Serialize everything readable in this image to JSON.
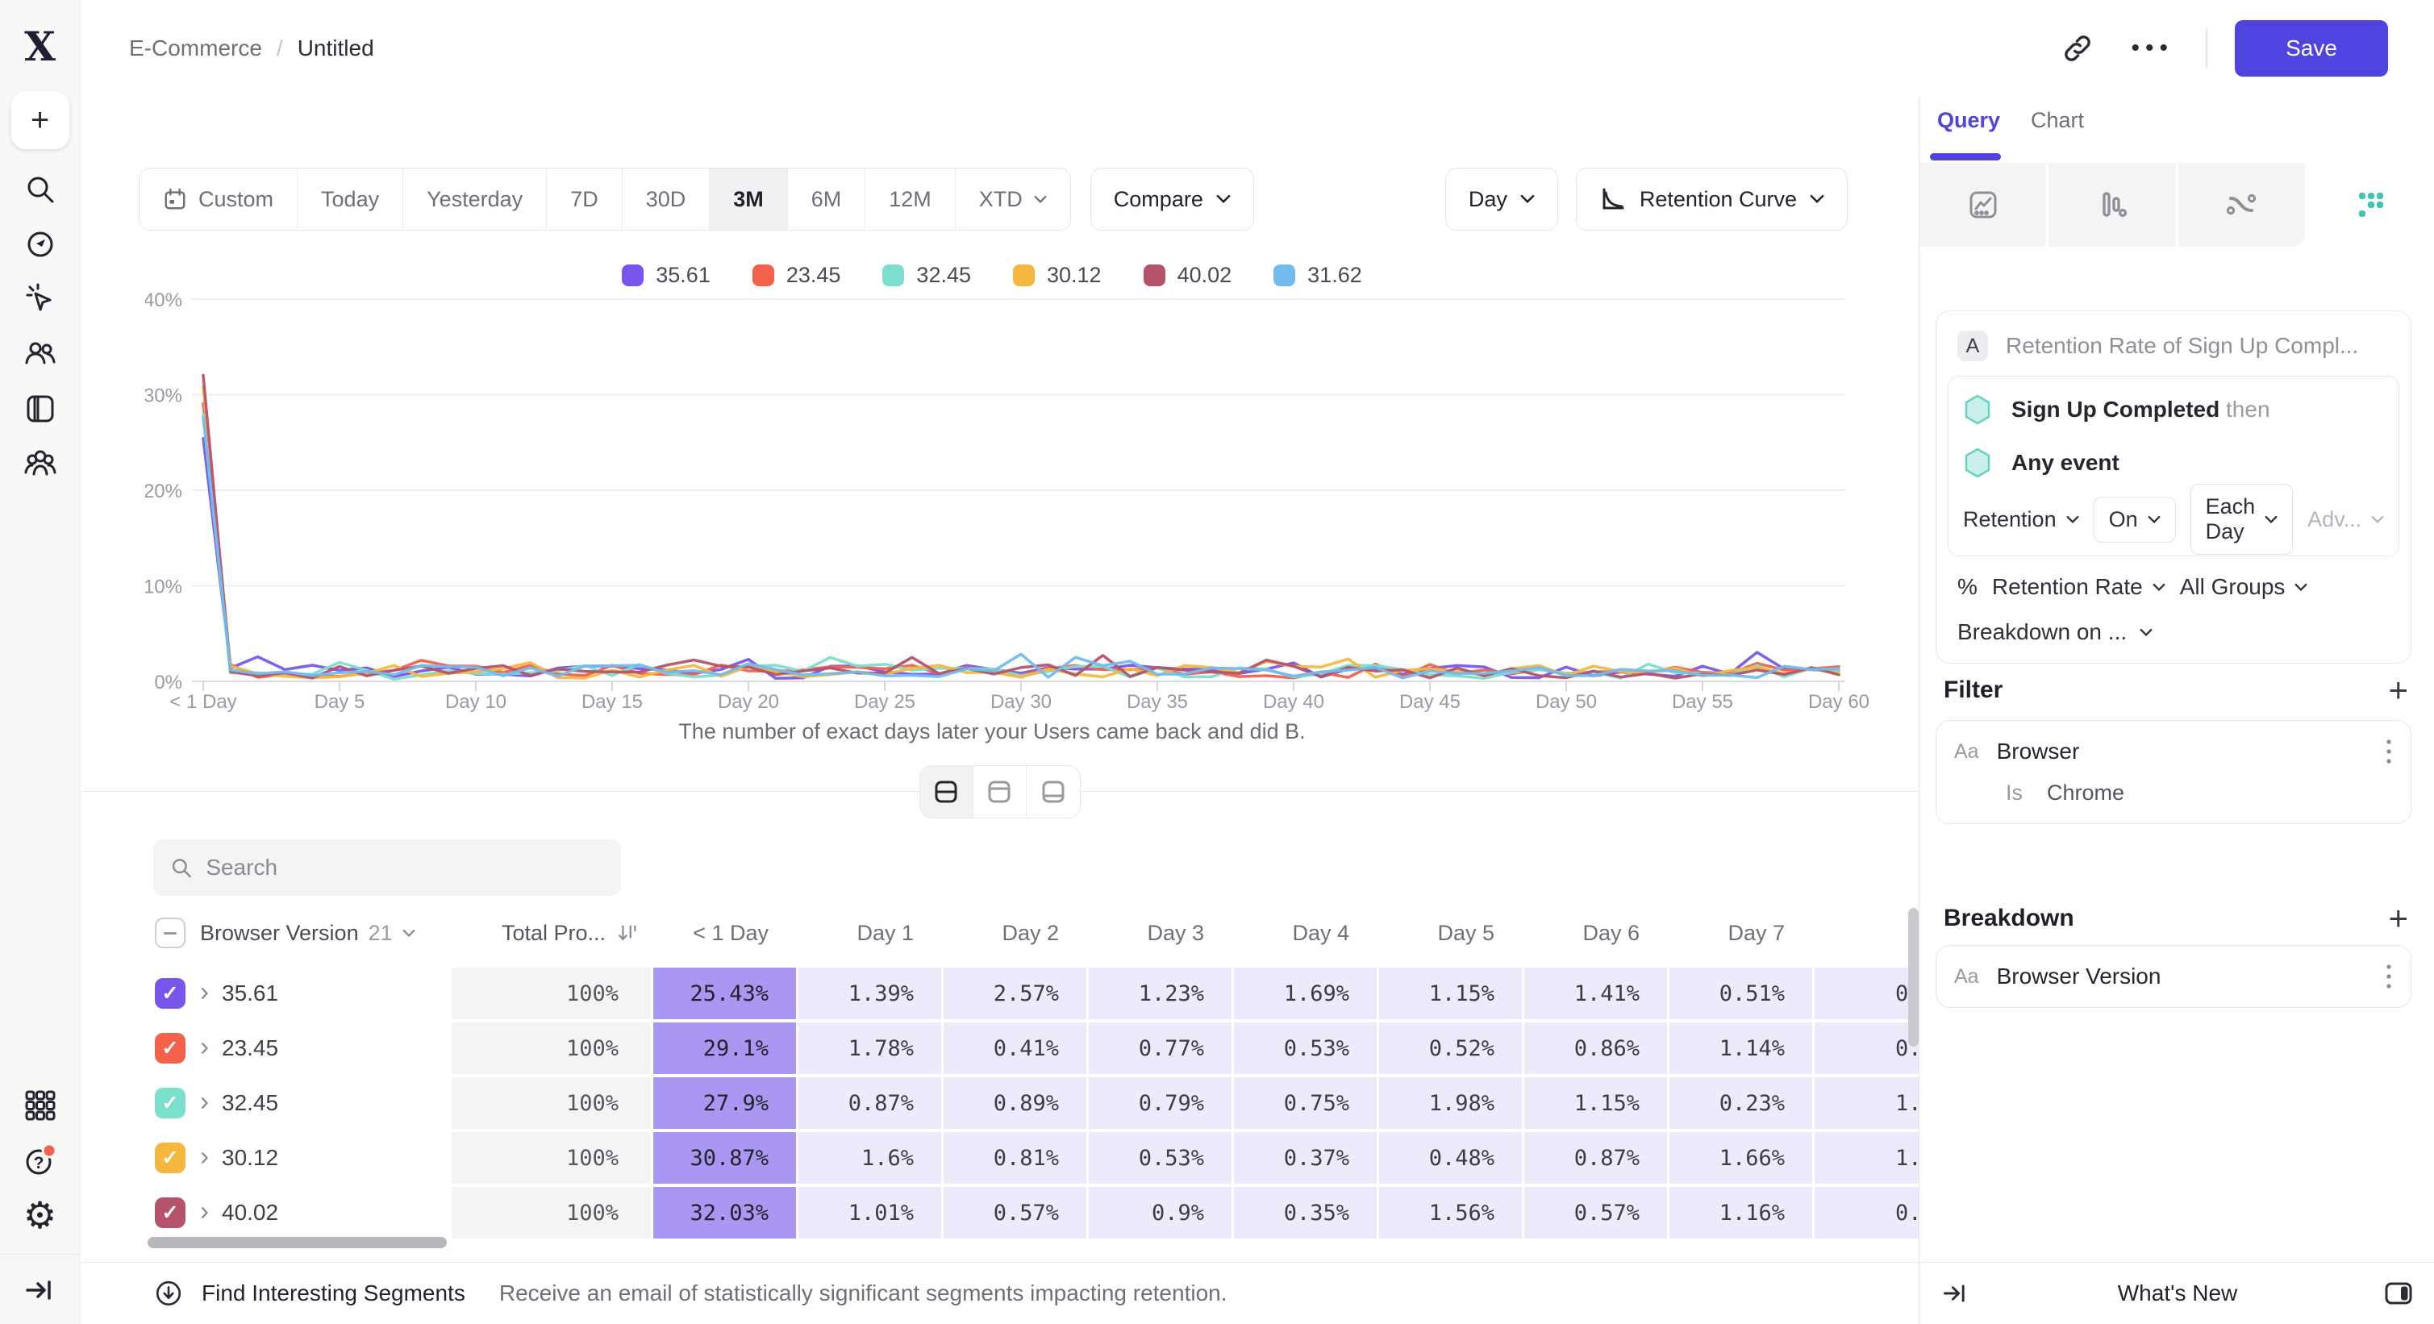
{
  "topbar": {
    "breadcrumb": {
      "parent": "E-Commerce",
      "separator": "/",
      "current": "Untitled"
    },
    "save_label": "Save"
  },
  "sidebar": {
    "top_icons": [
      "mixpanel-logo",
      "create-plus",
      "search",
      "discover-compass",
      "events-cursor",
      "users",
      "boards",
      "cohorts"
    ],
    "bottom_icons": [
      "apps-grid",
      "help",
      "settings-gear",
      "expand-sidebar"
    ],
    "help_has_notification": true,
    "logo_letter": "X"
  },
  "toolbar": {
    "ranges": [
      {
        "label": "Custom",
        "icon": "calendar"
      },
      {
        "label": "Today"
      },
      {
        "label": "Yesterday"
      },
      {
        "label": "7D"
      },
      {
        "label": "30D"
      },
      {
        "label": "3M",
        "active": true
      },
      {
        "label": "6M"
      },
      {
        "label": "12M"
      },
      {
        "label": "XTD",
        "chevron": true
      }
    ],
    "compare_label": "Compare",
    "day_label": "Day",
    "chart_type_label": "Retention Curve"
  },
  "chart_data": {
    "type": "line",
    "caption": "The number of exact days later your Users came back and did B.",
    "x_tick_labels": [
      "< 1 Day",
      "Day 5",
      "Day 10",
      "Day 15",
      "Day 20",
      "Day 25",
      "Day 30",
      "Day 35",
      "Day 40",
      "Day 45",
      "Day 50",
      "Day 55",
      "Day 60"
    ],
    "y_tick_labels": [
      "40%",
      "30%",
      "20%",
      "10%",
      "0%"
    ],
    "y_tick_values": [
      40,
      30,
      20,
      10,
      0
    ],
    "ylim": [
      0,
      40
    ],
    "x_days": [
      0,
      60
    ],
    "grid": "horizontal",
    "legend_position": "top-center",
    "series": [
      {
        "name": "35.61",
        "color": "#7856EB",
        "days_0_to_7": [
          25.43,
          1.39,
          2.57,
          1.23,
          1.69,
          1.15,
          1.41,
          0.51
        ],
        "tail": "fluctuates ~0.2-2.5% through Day 60"
      },
      {
        "name": "23.45",
        "color": "#F4614B",
        "days_0_to_7": [
          29.1,
          1.78,
          0.41,
          0.77,
          0.53,
          0.52,
          0.86,
          1.14
        ],
        "tail": "fluctuates ~0.2-2.5% through Day 60"
      },
      {
        "name": "32.45",
        "color": "#7CDECC",
        "days_0_to_7": [
          27.9,
          0.87,
          0.89,
          0.79,
          0.75,
          1.98,
          1.15,
          0.23
        ],
        "tail": "fluctuates ~0.2-2.5% through Day 60"
      },
      {
        "name": "30.12",
        "color": "#F5B73E",
        "days_0_to_7": [
          30.87,
          1.6,
          0.81,
          0.53,
          0.37,
          0.48,
          0.87,
          1.66
        ],
        "tail": "fluctuates ~0.2-2.5% through Day 60"
      },
      {
        "name": "40.02",
        "color": "#B5536B",
        "days_0_to_7": [
          32.03,
          1.01,
          0.57,
          0.9,
          0.35,
          1.56,
          0.57,
          1.16
        ],
        "tail": "fluctuates ~0.2-2.5% through Day 60"
      },
      {
        "name": "31.62",
        "color": "#72BBEF",
        "days_0_to_7": [
          27.6,
          1.2,
          0.8,
          1.0,
          0.62,
          0.9,
          1.05,
          0.7
        ],
        "tail": "row hidden below table scroll; day values estimated from chart"
      }
    ]
  },
  "view_toggle": {
    "options": [
      "split-view",
      "chart-only-view",
      "table-only-view"
    ],
    "active": "split-view"
  },
  "search": {
    "placeholder": "Search"
  },
  "table": {
    "group_column": "Browser Version",
    "group_count": "21",
    "total_column": "Total Pro...",
    "day_columns": [
      "< 1 Day",
      "Day 1",
      "Day 2",
      "Day 3",
      "Day 4",
      "Day 5",
      "Day 6",
      "Day 7"
    ],
    "rows": [
      {
        "name": "35.61",
        "color": "#7856EB",
        "total": "100%",
        "values": [
          "25.43%",
          "1.39%",
          "2.57%",
          "1.23%",
          "1.69%",
          "1.15%",
          "1.41%",
          "0.51%"
        ],
        "clipped_next": "0."
      },
      {
        "name": "23.45",
        "color": "#F4614B",
        "total": "100%",
        "values": [
          "29.1%",
          "1.78%",
          "0.41%",
          "0.77%",
          "0.53%",
          "0.52%",
          "0.86%",
          "1.14%"
        ],
        "clipped_next": "0."
      },
      {
        "name": "32.45",
        "color": "#7CDECC",
        "total": "100%",
        "values": [
          "27.9%",
          "0.87%",
          "0.89%",
          "0.79%",
          "0.75%",
          "1.98%",
          "1.15%",
          "0.23%"
        ],
        "clipped_next": "1."
      },
      {
        "name": "30.12",
        "color": "#F5B73E",
        "total": "100%",
        "values": [
          "30.87%",
          "1.6%",
          "0.81%",
          "0.53%",
          "0.37%",
          "0.48%",
          "0.87%",
          "1.66%"
        ],
        "clipped_next": "1."
      },
      {
        "name": "40.02",
        "color": "#B5536B",
        "total": "100%",
        "values": [
          "32.03%",
          "1.01%",
          "0.57%",
          "0.9%",
          "0.35%",
          "1.56%",
          "0.57%",
          "1.16%"
        ],
        "clipped_next": "0."
      }
    ]
  },
  "main_footer": {
    "segments_title": "Find Interesting Segments",
    "segments_desc": "Receive an email of statistically significant segments impacting retention."
  },
  "panel": {
    "tabs": [
      {
        "label": "Query",
        "active": true
      },
      {
        "label": "Chart",
        "active": false
      }
    ],
    "analysis_icons": [
      "insights-line-icon",
      "funnels-bars-icon",
      "flows-icon",
      "retention-dots-icon"
    ],
    "active_analysis": "retention-dots-icon",
    "query": {
      "badge": "A",
      "title": "Retention Rate of Sign Up Compl...",
      "event1": "Sign Up Completed",
      "event1_suffix": "then",
      "event2": "Any event",
      "retention_label": "Retention",
      "on_label": "On",
      "each_day_label": "Each Day",
      "adv_label": "Adv...",
      "metric_prefix": "%",
      "metric_label": "Retention Rate",
      "groups_label": "All Groups",
      "breakdown_on_label": "Breakdown on ..."
    },
    "filter": {
      "heading": "Filter",
      "type_badge": "Aa",
      "property": "Browser",
      "operator": "Is",
      "value": "Chrome"
    },
    "breakdown": {
      "heading": "Breakdown",
      "type_badge": "Aa",
      "property": "Browser Version"
    },
    "footer": {
      "whats_new": "What's New"
    }
  },
  "colors": {
    "accent_indigo": "#4F44E0",
    "teal_event": "#6AD2C2",
    "heat_cell_strong": "#A997F1",
    "heat_cell_light": "#EDEAFB",
    "notification_red": "#F4614B"
  }
}
